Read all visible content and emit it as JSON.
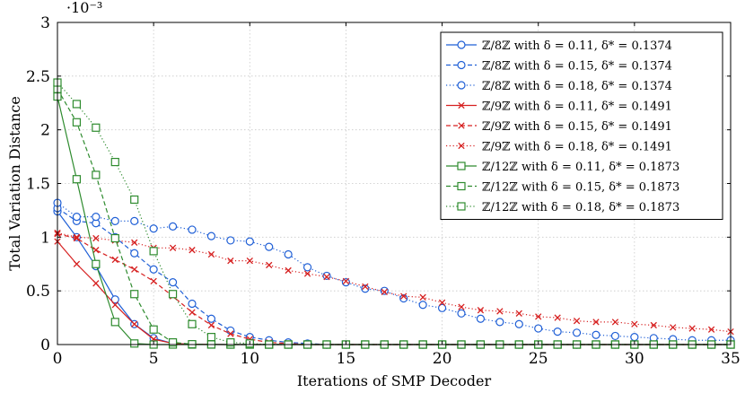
{
  "chart_data": {
    "type": "line",
    "title": "",
    "xlabel": "Iterations of SMP Decoder",
    "ylabel": "Total Variation Distance",
    "y_exponent_label": "·10⁻³",
    "xlim": [
      0,
      35
    ],
    "ylim": [
      0,
      3
    ],
    "x_ticks": [
      0,
      5,
      10,
      15,
      20,
      25,
      30,
      35
    ],
    "y_ticks": [
      0,
      0.5,
      1,
      1.5,
      2,
      2.5,
      3
    ],
    "y_tick_labels": [
      "0",
      "0.5",
      "1",
      "1.5",
      "2",
      "2.5",
      "3"
    ],
    "grid": true,
    "legend_position": "top-right",
    "series": [
      {
        "name": "ℤ/8ℤ with δ = 0.11, δ* = 0.1374",
        "color": "#1f5fd6",
        "dash": "solid",
        "marker": "circle",
        "x": [
          0,
          1,
          2,
          3,
          4,
          5,
          6,
          7,
          8,
          9,
          10,
          11,
          12,
          13,
          14,
          15,
          16,
          17,
          18,
          19,
          20,
          21,
          22,
          23,
          24,
          25,
          26,
          27,
          28,
          29,
          30,
          31,
          32,
          33,
          34,
          35
        ],
        "y": [
          1.24,
          1.0,
          0.73,
          0.42,
          0.19,
          0.06,
          0.01,
          0.003,
          0.001,
          0,
          0,
          0,
          0,
          0,
          0,
          0,
          0,
          0,
          0,
          0,
          0,
          0,
          0,
          0,
          0,
          0,
          0,
          0,
          0,
          0,
          0,
          0,
          0,
          0,
          0,
          0
        ]
      },
      {
        "name": "ℤ/8ℤ with δ = 0.15, δ* = 0.1374",
        "color": "#1f5fd6",
        "dash": "dashed",
        "marker": "circle",
        "x": [
          0,
          1,
          2,
          3,
          4,
          5,
          6,
          7,
          8,
          9,
          10,
          11,
          12,
          13,
          14,
          15,
          16,
          17,
          18,
          19,
          20,
          21,
          22,
          23,
          24,
          25,
          26,
          27,
          28,
          29,
          30,
          31,
          32,
          33,
          34,
          35
        ],
        "y": [
          1.27,
          1.15,
          1.13,
          1.0,
          0.85,
          0.7,
          0.58,
          0.38,
          0.24,
          0.13,
          0.07,
          0.04,
          0.02,
          0.01,
          0,
          0,
          0,
          0,
          0,
          0,
          0,
          0,
          0,
          0,
          0,
          0,
          0,
          0,
          0,
          0,
          0,
          0,
          0,
          0,
          0,
          0
        ]
      },
      {
        "name": "ℤ/8ℤ with δ = 0.18, δ* = 0.1374",
        "color": "#1f5fd6",
        "dash": "dotted",
        "marker": "circle",
        "x": [
          0,
          1,
          2,
          3,
          4,
          5,
          6,
          7,
          8,
          9,
          10,
          11,
          12,
          13,
          14,
          15,
          16,
          17,
          18,
          19,
          20,
          21,
          22,
          23,
          24,
          25,
          26,
          27,
          28,
          29,
          30,
          31,
          32,
          33,
          34,
          35
        ],
        "y": [
          1.32,
          1.19,
          1.19,
          1.15,
          1.15,
          1.08,
          1.1,
          1.07,
          1.01,
          0.97,
          0.96,
          0.91,
          0.84,
          0.72,
          0.64,
          0.58,
          0.52,
          0.5,
          0.43,
          0.37,
          0.34,
          0.29,
          0.24,
          0.21,
          0.19,
          0.15,
          0.12,
          0.11,
          0.09,
          0.08,
          0.07,
          0.06,
          0.05,
          0.04,
          0.04,
          0.04
        ]
      },
      {
        "name": "ℤ/9ℤ with δ = 0.11, δ* = 0.1491",
        "color": "#d62020",
        "dash": "solid",
        "marker": "x",
        "x": [
          0,
          1,
          2,
          3,
          4,
          5,
          6,
          7,
          8,
          9,
          10,
          11,
          12,
          13,
          14,
          15,
          16,
          17,
          18,
          19,
          20,
          21,
          22,
          23,
          24,
          25,
          26,
          27,
          28,
          29,
          30,
          31,
          32,
          33,
          34,
          35
        ],
        "y": [
          0.96,
          0.75,
          0.57,
          0.37,
          0.19,
          0.05,
          0.01,
          0.003,
          0.001,
          0,
          0,
          0,
          0,
          0,
          0,
          0,
          0,
          0,
          0,
          0,
          0,
          0,
          0,
          0,
          0,
          0,
          0,
          0,
          0,
          0,
          0,
          0,
          0,
          0,
          0,
          0
        ]
      },
      {
        "name": "ℤ/9ℤ with δ = 0.15, δ* = 0.1491",
        "color": "#d62020",
        "dash": "dashed",
        "marker": "x",
        "x": [
          0,
          1,
          2,
          3,
          4,
          5,
          6,
          7,
          8,
          9,
          10,
          11,
          12,
          13,
          14,
          15,
          16,
          17,
          18,
          19,
          20,
          21,
          22,
          23,
          24,
          25,
          26,
          27,
          28,
          29,
          30,
          31,
          32,
          33,
          34,
          35
        ],
        "y": [
          1.03,
          0.99,
          0.88,
          0.79,
          0.7,
          0.59,
          0.45,
          0.3,
          0.18,
          0.1,
          0.05,
          0.02,
          0.01,
          0,
          0,
          0,
          0,
          0,
          0,
          0,
          0,
          0,
          0,
          0,
          0,
          0,
          0,
          0,
          0,
          0,
          0,
          0,
          0,
          0,
          0,
          0
        ]
      },
      {
        "name": "ℤ/9ℤ with δ = 0.18, δ* = 0.1491",
        "color": "#d62020",
        "dash": "dotted",
        "marker": "x",
        "x": [
          0,
          1,
          2,
          3,
          4,
          5,
          6,
          7,
          8,
          9,
          10,
          11,
          12,
          13,
          14,
          15,
          16,
          17,
          18,
          19,
          20,
          21,
          22,
          23,
          24,
          25,
          26,
          27,
          28,
          29,
          30,
          31,
          32,
          33,
          34,
          35
        ],
        "y": [
          1.04,
          1.0,
          0.99,
          0.97,
          0.95,
          0.9,
          0.9,
          0.88,
          0.84,
          0.78,
          0.78,
          0.74,
          0.69,
          0.66,
          0.63,
          0.59,
          0.54,
          0.49,
          0.45,
          0.44,
          0.39,
          0.35,
          0.32,
          0.31,
          0.29,
          0.26,
          0.25,
          0.22,
          0.21,
          0.21,
          0.19,
          0.18,
          0.16,
          0.15,
          0.14,
          0.12
        ]
      },
      {
        "name": "ℤ/12ℤ with δ = 0.11, δ* = 0.1873",
        "color": "#2e8b2e",
        "dash": "solid",
        "marker": "square",
        "x": [
          0,
          1,
          2,
          3,
          4,
          5,
          6,
          7,
          8,
          9,
          10,
          11,
          12,
          13,
          14,
          15,
          16,
          17,
          18,
          19,
          20,
          21,
          22,
          23,
          24,
          25,
          26,
          27,
          28,
          29,
          30,
          31,
          32,
          33,
          34,
          35
        ],
        "y": [
          2.31,
          1.54,
          0.75,
          0.21,
          0.01,
          0,
          0,
          0,
          0,
          0,
          0,
          0,
          0,
          0,
          0,
          0,
          0,
          0,
          0,
          0,
          0,
          0,
          0,
          0,
          0,
          0,
          0,
          0,
          0,
          0,
          0,
          0,
          0,
          0,
          0,
          0
        ]
      },
      {
        "name": "ℤ/12ℤ with δ = 0.15, δ* = 0.1873",
        "color": "#2e8b2e",
        "dash": "dashed",
        "marker": "square",
        "x": [
          0,
          1,
          2,
          3,
          4,
          5,
          6,
          7,
          8,
          9,
          10,
          11,
          12,
          13,
          14,
          15,
          16,
          17,
          18,
          19,
          20,
          21,
          22,
          23,
          24,
          25,
          26,
          27,
          28,
          29,
          30,
          31,
          32,
          33,
          34,
          35
        ],
        "y": [
          2.38,
          2.07,
          1.58,
          0.99,
          0.47,
          0.14,
          0.02,
          0.003,
          0.001,
          0,
          0,
          0,
          0,
          0,
          0,
          0,
          0,
          0,
          0,
          0,
          0,
          0,
          0,
          0,
          0,
          0,
          0,
          0,
          0,
          0,
          0,
          0,
          0,
          0,
          0,
          0
        ]
      },
      {
        "name": "ℤ/12ℤ with δ = 0.18, δ* = 0.1873",
        "color": "#2e8b2e",
        "dash": "dotted",
        "marker": "square",
        "x": [
          0,
          1,
          2,
          3,
          4,
          5,
          6,
          7,
          8,
          9,
          10,
          11,
          12,
          13,
          14,
          15,
          16,
          17,
          18,
          19,
          20,
          21,
          22,
          23,
          24,
          25,
          26,
          27,
          28,
          29,
          30,
          31,
          32,
          33,
          34,
          35
        ],
        "y": [
          2.44,
          2.24,
          2.02,
          1.7,
          1.35,
          0.87,
          0.47,
          0.19,
          0.07,
          0.02,
          0.01,
          0,
          0,
          0,
          0,
          0,
          0,
          0,
          0,
          0,
          0,
          0,
          0,
          0,
          0,
          0,
          0,
          0,
          0,
          0,
          0,
          0,
          0,
          0,
          0,
          0
        ]
      }
    ]
  }
}
